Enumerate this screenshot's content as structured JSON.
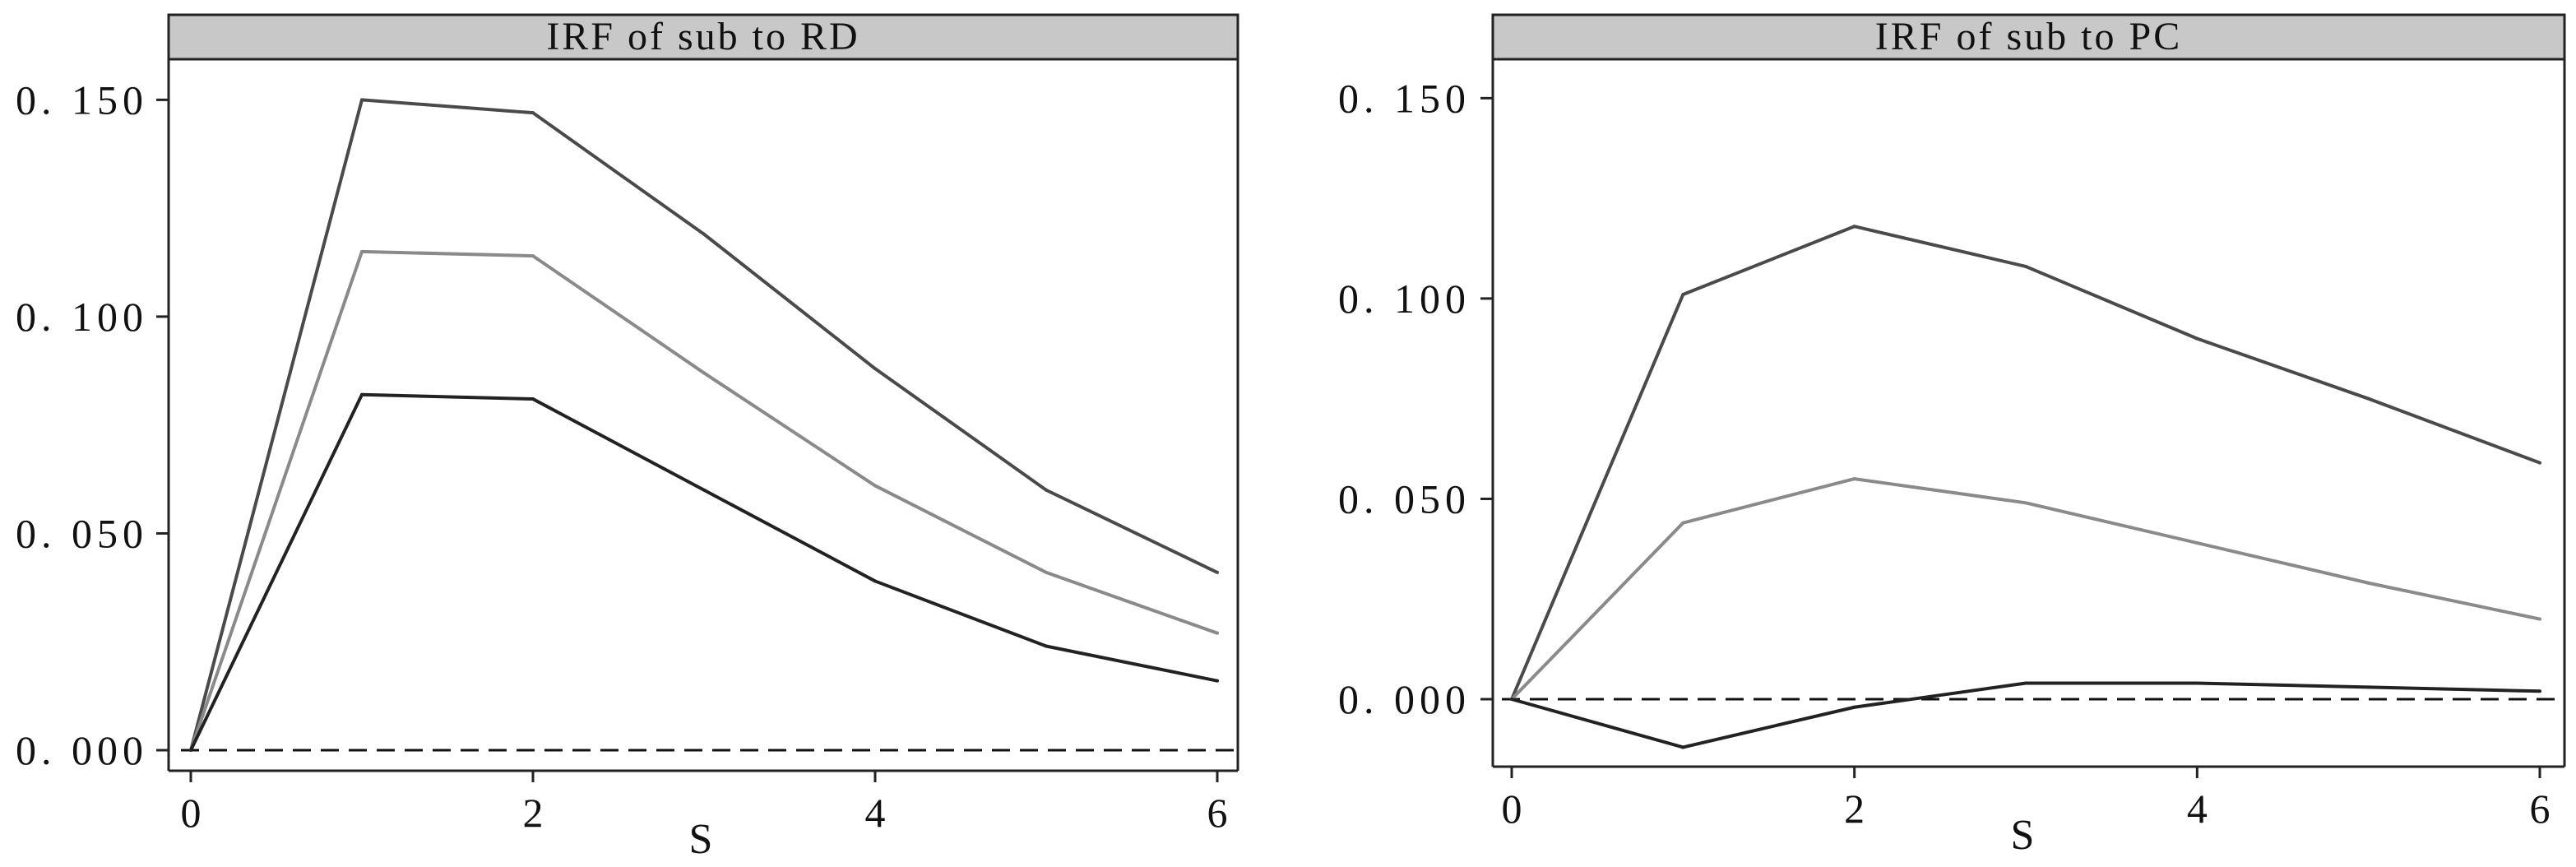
{
  "chart_data": [
    {
      "type": "line",
      "title": "IRF of sub to RD",
      "xlabel": "S",
      "ylabel": "",
      "xlim": [
        0,
        6
      ],
      "ylim": [
        0,
        0.155
      ],
      "x_ticks": [
        0,
        2,
        4,
        6
      ],
      "x_tick_labels": [
        "0",
        "2",
        "4",
        "6"
      ],
      "y_ticks": [
        0,
        0.05,
        0.1,
        0.15
      ],
      "y_tick_labels": [
        "0. 000",
        "0. 050",
        "0. 100",
        "0. 150"
      ],
      "grid": false,
      "legend": "none",
      "zero_line": {
        "value": 0,
        "style": "dashed"
      },
      "x": [
        0,
        1,
        2,
        3,
        4,
        5,
        6
      ],
      "series": [
        {
          "role": "upper",
          "color": "#4a4a4a",
          "values": [
            0,
            0.15,
            0.147,
            0.119,
            0.088,
            0.06,
            0.041
          ]
        },
        {
          "role": "estimate",
          "color": "#8a8a8a",
          "values": [
            0,
            0.115,
            0.114,
            0.087,
            0.061,
            0.041,
            0.027
          ]
        },
        {
          "role": "lower",
          "color": "#222222",
          "values": [
            0,
            0.082,
            0.081,
            0.06,
            0.039,
            0.024,
            0.016
          ]
        }
      ]
    },
    {
      "type": "line",
      "title": "IRF of sub to PC",
      "xlabel": "S",
      "ylabel": "",
      "xlim": [
        0,
        6
      ],
      "ylim": [
        -0.017,
        0.155
      ],
      "x_ticks": [
        0,
        2,
        4,
        6
      ],
      "x_tick_labels": [
        "0",
        "2",
        "4",
        "6"
      ],
      "y_ticks": [
        0,
        0.05,
        0.1,
        0.15
      ],
      "y_tick_labels": [
        "0. 000",
        "0. 050",
        "0. 100",
        "0. 150"
      ],
      "grid": false,
      "legend": "none",
      "zero_line": {
        "value": 0,
        "style": "dashed"
      },
      "x": [
        0,
        1,
        2,
        3,
        4,
        5,
        6
      ],
      "series": [
        {
          "role": "upper",
          "color": "#4a4a4a",
          "values": [
            0,
            0.101,
            0.118,
            0.108,
            0.09,
            0.075,
            0.059
          ]
        },
        {
          "role": "estimate",
          "color": "#8a8a8a",
          "values": [
            0,
            0.044,
            0.055,
            0.049,
            0.039,
            0.029,
            0.02
          ]
        },
        {
          "role": "lower",
          "color": "#222222",
          "values": [
            0,
            -0.012,
            -0.002,
            0.004,
            0.004,
            0.003,
            0.002
          ]
        }
      ]
    }
  ]
}
